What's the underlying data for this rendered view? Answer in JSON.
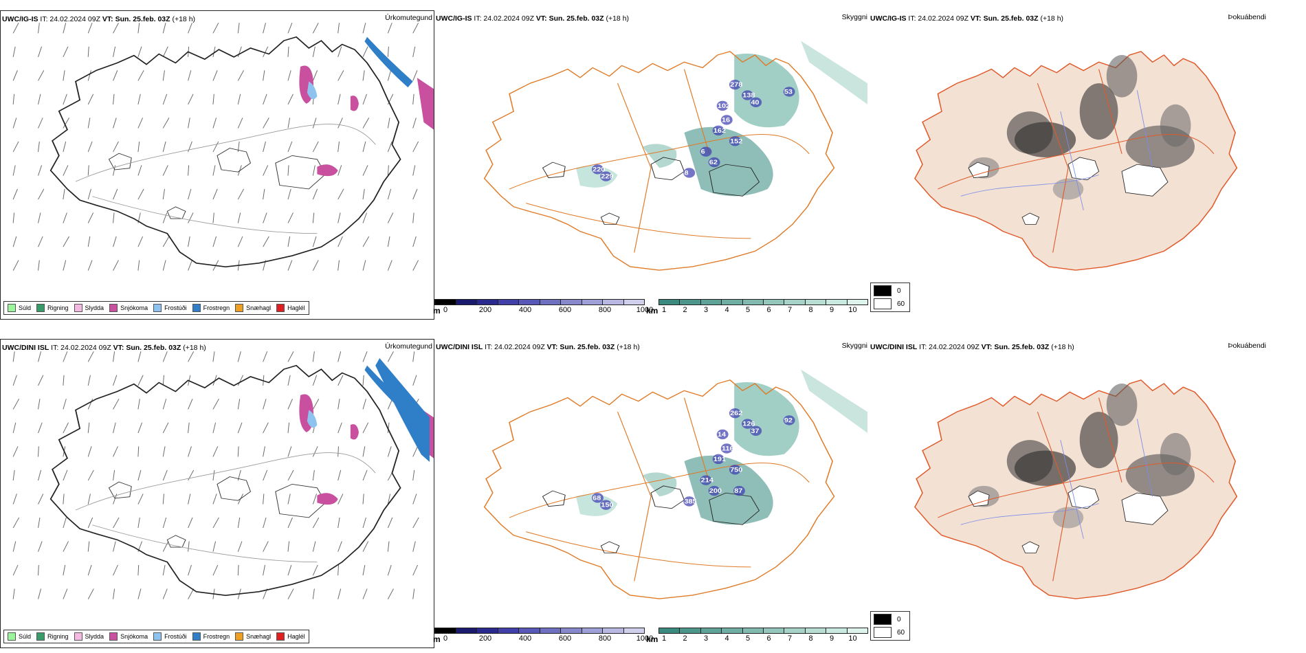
{
  "legend_items": [
    {
      "label": "Súld",
      "color": "#9cf59c"
    },
    {
      "label": "Rigning",
      "color": "#3a9a6a"
    },
    {
      "label": "Slydda",
      "color": "#f5b8e0"
    },
    {
      "label": "Snjókoma",
      "color": "#c8509e"
    },
    {
      "label": "Frostúði",
      "color": "#8ec3f0"
    },
    {
      "label": "Frostregn",
      "color": "#2f7ec8"
    },
    {
      "label": "Snæhagl",
      "color": "#f0a020"
    },
    {
      "label": "Haglél",
      "color": "#e02020"
    }
  ],
  "colorbar_height": {
    "unit": "m",
    "ticks": [
      "0",
      "200",
      "400",
      "600",
      "800",
      "1000"
    ],
    "colors": [
      "#000000",
      "#1a1a6e",
      "#2a2a8e",
      "#4040a8",
      "#5858b8",
      "#7070c0",
      "#8888cc",
      "#a0a0d8",
      "#b8b8e2",
      "#d0d0ec"
    ]
  },
  "colorbar_km": {
    "unit": "km",
    "ticks": [
      "1",
      "2",
      "3",
      "4",
      "5",
      "6",
      "7",
      "8",
      "9",
      "10"
    ],
    "colors": [
      "#3a8a80",
      "#4c968c",
      "#5ea298",
      "#70aea4",
      "#82bab0",
      "#94c6bc",
      "#a6d2c8",
      "#b8ded4",
      "#cae9e0",
      "#ddf3ec"
    ]
  },
  "fog_legend": [
    {
      "label": "0",
      "color": "#000000"
    },
    {
      "label": "60",
      "color": "#ffffff"
    }
  ],
  "rows": [
    {
      "model": "UWC/IG-IS",
      "it": "IT: 24.02.2024 09Z",
      "vt_label": "VT:",
      "vt": "Sun. 25.feb. 03Z",
      "lead": "(+18 h)",
      "titles": [
        "Úrkomutegund",
        "Skyggni",
        "Þokuábendi"
      ],
      "cloud_labels": [
        "278",
        "138",
        "40",
        "53",
        "102",
        "16",
        "162",
        "152",
        "6",
        "62",
        "8",
        "229",
        "220"
      ]
    },
    {
      "model": "UWC/DINI ISL",
      "it": "IT: 24.02.2024 09Z",
      "vt_label": "VT:",
      "vt": "Sun. 25.feb. 03Z",
      "lead": "(+18 h)",
      "titles": [
        "Úrkomutegund",
        "Skyggni",
        "Þokuábendi"
      ],
      "cloud_labels": [
        "262",
        "126",
        "37",
        "92",
        "14",
        "116",
        "191",
        "750",
        "214",
        "200",
        "385",
        "150",
        "68",
        "87"
      ]
    }
  ]
}
